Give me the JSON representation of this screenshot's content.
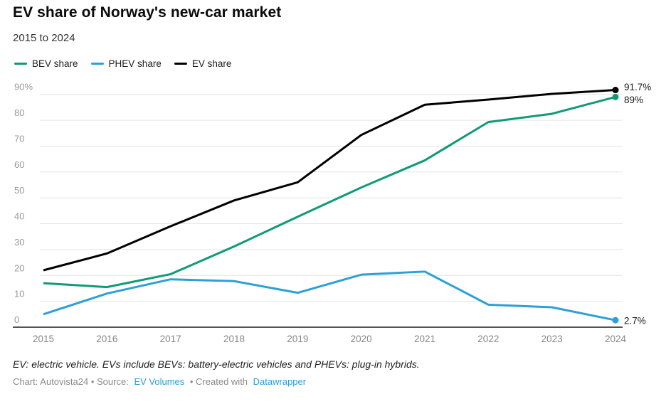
{
  "header": {
    "title": "EV share of Norway's new-car market",
    "subtitle": "2015 to 2024"
  },
  "legend": {
    "items": [
      {
        "label": "BEV share",
        "color": "#0f9a78"
      },
      {
        "label": "PHEV share",
        "color": "#2da0d7"
      },
      {
        "label": "EV share",
        "color": "#000000"
      }
    ]
  },
  "chart_data": {
    "type": "line",
    "title": "EV share of Norway's new-car market",
    "subtitle": "2015 to 2024",
    "categories": [
      "2015",
      "2016",
      "2017",
      "2018",
      "2019",
      "2020",
      "2021",
      "2022",
      "2023",
      "2024"
    ],
    "series": [
      {
        "name": "BEV share",
        "color": "#0f9a78",
        "values": [
          17,
          15.5,
          20.5,
          31.2,
          42.7,
          54,
          64.5,
          79.3,
          82.5,
          89
        ],
        "end_label": "89%"
      },
      {
        "name": "PHEV share",
        "color": "#2da0d7",
        "values": [
          5,
          13,
          18.5,
          17.8,
          13.3,
          20.3,
          21.5,
          8.7,
          7.7,
          2.7
        ],
        "end_label": "2.7%"
      },
      {
        "name": "EV share",
        "color": "#000000",
        "values": [
          22,
          28.5,
          39,
          49,
          56,
          74.3,
          86,
          88,
          90.2,
          91.7
        ],
        "end_label": "91.7%"
      }
    ],
    "ylim": [
      0,
      90
    ],
    "yticks": [
      0,
      10,
      20,
      30,
      40,
      50,
      60,
      70,
      80,
      90
    ],
    "ytick_labels": [
      "0",
      "10",
      "20",
      "30",
      "40",
      "50",
      "60",
      "70",
      "80",
      "90%"
    ],
    "grid": "horizontal",
    "legend_position": "top",
    "xlabel": "",
    "ylabel": "",
    "colors": {
      "gridline": "#e4e4e4",
      "axis_line": "#1a1a1a",
      "y_tick_text": "#999999",
      "x_tick_text": "#878787",
      "end_label_text": "#1a1a1a"
    }
  },
  "footer": {
    "note": "EV: electric vehicle. EVs include BEVs: battery-electric vehicles and PHEVs: plug-in hybrids.",
    "credit_prefix": "Chart: Autovista24 • Source:",
    "source_link": "EV Volumes",
    "credit_middle": "• Created with",
    "tool_link": "Datawrapper",
    "link_color": "#2b9cd8"
  }
}
